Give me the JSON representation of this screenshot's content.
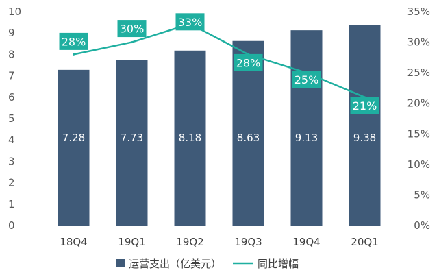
{
  "chart_data": {
    "type": "bar",
    "categories": [
      "18Q4",
      "19Q1",
      "19Q2",
      "19Q3",
      "19Q4",
      "20Q1"
    ],
    "series": [
      {
        "name": "运营支出（亿美元）",
        "type": "bar",
        "axis": "left",
        "values": [
          7.28,
          7.73,
          8.18,
          8.63,
          9.13,
          9.38
        ],
        "labels": [
          "7.28",
          "7.73",
          "8.18",
          "8.63",
          "9.13",
          "9.38"
        ],
        "color": "#3f5a78"
      },
      {
        "name": "同比增幅",
        "type": "line",
        "axis": "right",
        "values": [
          28,
          30,
          33,
          28,
          25,
          21
        ],
        "labels": [
          "28%",
          "30%",
          "33%",
          "28%",
          "25%",
          "21%"
        ],
        "color": "#1fafa0"
      }
    ],
    "y_left": {
      "min": 0,
      "max": 10,
      "ticks": [
        "0",
        "1",
        "2",
        "3",
        "4",
        "5",
        "6",
        "7",
        "8",
        "9",
        "10"
      ]
    },
    "y_right": {
      "min": 0,
      "max": 35,
      "ticks": [
        "0%",
        "5%",
        "10%",
        "15%",
        "20%",
        "25%",
        "30%",
        "35%"
      ]
    },
    "legend_position": "bottom",
    "grid": false
  }
}
